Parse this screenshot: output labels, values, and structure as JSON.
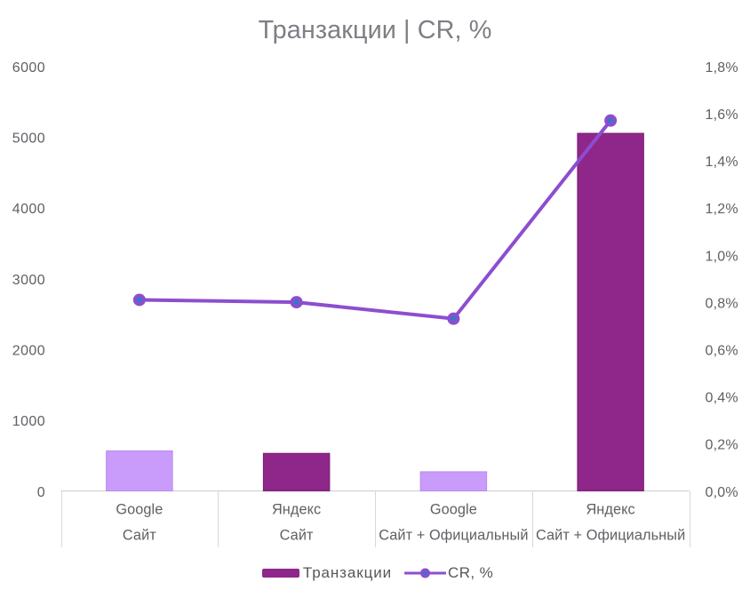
{
  "chart_data": {
    "type": "combo",
    "title": "Транзакции | CR, %",
    "categories": [
      [
        "Google",
        "Сайт"
      ],
      [
        "Яндекс",
        "Сайт"
      ],
      [
        "Google",
        "Сайт + Официальный"
      ],
      [
        "Яндекс",
        "Сайт + Официальный"
      ]
    ],
    "series": [
      {
        "name": "Транзакции",
        "type": "column",
        "axis": "left",
        "values": [
          566,
          531,
          271,
          5053
        ],
        "point_colors": [
          "#C99BFA",
          "#8F2689",
          "#C99BFA",
          "#8F2689"
        ],
        "point_border_colors": [
          "#B78CEC",
          "#7A2073",
          "#B78CEC",
          "#7A2073"
        ],
        "legend_color": "#8F2689"
      },
      {
        "name": "CR, %",
        "type": "line",
        "axis": "right",
        "values": [
          0.81,
          0.8,
          0.73,
          1.57
        ],
        "color": "#8C4ECF",
        "marker_color": "#8C4ECF",
        "marker_center_color": "#2D7CC5"
      }
    ],
    "axes": {
      "left": {
        "min": 0,
        "max": 6000,
        "step": 1000,
        "labels": [
          "0",
          "1000",
          "2000",
          "3000",
          "4000",
          "5000",
          "6000"
        ]
      },
      "right": {
        "min": 0,
        "max": 1.8,
        "step": 0.2,
        "labels": [
          "0,0%",
          "0,2%",
          "0,4%",
          "0,6%",
          "0,8%",
          "1,0%",
          "1,2%",
          "1,4%",
          "1,6%",
          "1,8%"
        ]
      }
    },
    "grid": false,
    "legend_position": "bottom-center"
  },
  "colors": {
    "background": "#FFFFFF",
    "title_text": "#7D7F84",
    "axis_text": "#5E6064",
    "category_text": "#5E6064",
    "legend_text": "#55575B",
    "box_border": "#D9D9D9",
    "axis_line": "#CDCDCD"
  }
}
